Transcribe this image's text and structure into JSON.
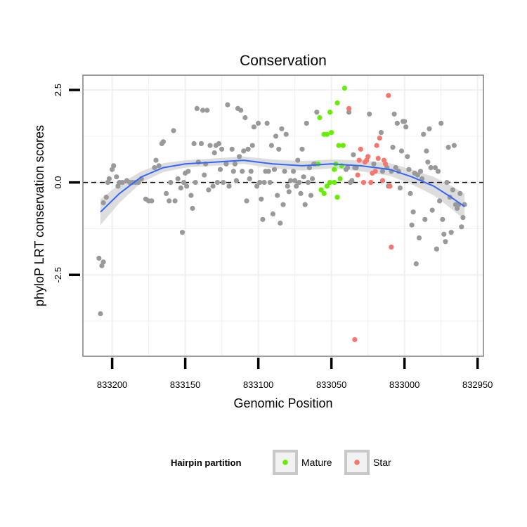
{
  "chart_data": {
    "type": "scatter",
    "title": "Conservation",
    "xlabel": "Genomic Position",
    "ylabel": "phyloP LRT conservation scores",
    "x_reversed": true,
    "xlim": [
      833220,
      832946
    ],
    "ylim": [
      -4.7,
      2.9
    ],
    "x_ticks": [
      833200,
      833150,
      833100,
      833050,
      833000,
      832950
    ],
    "y_ticks": [
      -2.5,
      0.0,
      2.5
    ],
    "y_tick_labels": [
      "-2.5",
      "0.0",
      "2.5"
    ],
    "reference_line": {
      "y": 0,
      "style": "dashed",
      "color": "#000000"
    },
    "grid": true,
    "legend": {
      "title": "Hairpin partition",
      "position": "bottom",
      "entries": [
        {
          "label": "Mature",
          "color": "#66ee00"
        },
        {
          "label": "Star",
          "color": "#f8766d"
        }
      ]
    },
    "colors": {
      "other": "#999999",
      "mature": "#66ee00",
      "star": "#f8766d",
      "smooth": "#3366ff",
      "band": "#d9d9d9",
      "panel_border": "#7f7f7f"
    },
    "smooth": {
      "method": "loess",
      "x": [
        833208,
        833195,
        833180,
        833165,
        833150,
        833130,
        833110,
        833090,
        833070,
        833050,
        833030,
        833010,
        832995,
        832980,
        832970,
        832959
      ],
      "y": [
        -0.8,
        -0.3,
        0.15,
        0.4,
        0.5,
        0.55,
        0.6,
        0.5,
        0.45,
        0.5,
        0.45,
        0.35,
        0.15,
        -0.1,
        -0.35,
        -0.65
      ],
      "se_upper": [
        -0.45,
        -0.05,
        0.3,
        0.52,
        0.6,
        0.65,
        0.7,
        0.62,
        0.58,
        0.62,
        0.6,
        0.52,
        0.35,
        0.15,
        -0.05,
        -0.3
      ],
      "se_lower": [
        -1.15,
        -0.55,
        0.0,
        0.28,
        0.4,
        0.45,
        0.5,
        0.38,
        0.32,
        0.38,
        0.3,
        0.18,
        -0.05,
        -0.35,
        -0.65,
        -1.0
      ]
    },
    "series": [
      {
        "name": "Mature",
        "points": [
          [
            833058,
            1.75
          ],
          [
            833055,
            1.3
          ],
          [
            833053,
            1.3
          ],
          [
            833050,
            1.35
          ],
          [
            833051,
            1.9
          ],
          [
            833047,
            0.5
          ],
          [
            833045,
            1.0
          ],
          [
            833046,
            2.15
          ],
          [
            833059,
            0.5
          ],
          [
            833057,
            -0.2
          ],
          [
            833055,
            -0.3
          ],
          [
            833053,
            -0.1
          ],
          [
            833051,
            0.0
          ],
          [
            833048,
            0.0
          ],
          [
            833048,
            0.35
          ],
          [
            833046,
            -0.4
          ],
          [
            833044,
            0.1
          ],
          [
            833043,
            0.45
          ],
          [
            833042,
            1.0
          ],
          [
            833041,
            2.55
          ]
        ]
      },
      {
        "name": "Star",
        "points": [
          [
            833038,
            2.0
          ],
          [
            833032,
            0.2
          ],
          [
            833028,
            0.0
          ],
          [
            833031,
            0.6
          ],
          [
            833030,
            0.9
          ],
          [
            833026,
            0.6
          ],
          [
            833025,
            0.7
          ],
          [
            833027,
            0.55
          ],
          [
            833022,
            0.25
          ],
          [
            833020,
            0.3
          ],
          [
            833023,
            -0.0
          ],
          [
            833018,
            0.65
          ],
          [
            833017,
            1.2
          ],
          [
            833019,
            1.0
          ],
          [
            833014,
            0.6
          ],
          [
            833015,
            0.05
          ],
          [
            833013,
            0.5
          ],
          [
            833010,
            -0.1
          ],
          [
            833011,
            2.35
          ],
          [
            833009,
            -1.75
          ],
          [
            833034,
            -4.25
          ]
        ]
      },
      {
        "name": "",
        "points": [
          [
            833209,
            -2.05
          ],
          [
            833208,
            -3.55
          ],
          [
            833207,
            -2.25
          ],
          [
            833206,
            -2.15
          ],
          [
            833206,
            -0.55
          ],
          [
            833204,
            -0.4
          ],
          [
            833203,
            0.0
          ],
          [
            833202,
            0.1
          ],
          [
            833200,
            0.35
          ],
          [
            833199,
            0.45
          ],
          [
            833197,
            0.15
          ],
          [
            833196,
            -0.1
          ],
          [
            833195,
            0.0
          ],
          [
            833193,
            0.0
          ],
          [
            833190,
            0.05
          ],
          [
            833188,
            0.0
          ],
          [
            833186,
            -0.0
          ],
          [
            833184,
            0.0
          ],
          [
            833182,
            0.0
          ],
          [
            833180,
            0.1
          ],
          [
            833177,
            -0.45
          ],
          [
            833175,
            -0.5
          ],
          [
            833173,
            -0.5
          ],
          [
            833171,
            0.4
          ],
          [
            833170,
            0.6
          ],
          [
            833168,
            0.45
          ],
          [
            833166,
            1.05
          ],
          [
            833165,
            1.1
          ],
          [
            833163,
            -0.3
          ],
          [
            833161,
            -0.5
          ],
          [
            833160,
            -0.0
          ],
          [
            833158,
            1.4
          ],
          [
            833157,
            -0.5
          ],
          [
            833155,
            0.1
          ],
          [
            833153,
            -0.15
          ],
          [
            833152,
            -1.35
          ],
          [
            833151,
            -0.0
          ],
          [
            833150,
            0.25
          ],
          [
            833149,
            -0.1
          ],
          [
            833148,
            0.3
          ],
          [
            833146,
            -0.35
          ],
          [
            833145,
            -0.7
          ],
          [
            833144,
            1.05
          ],
          [
            833143,
            0.0
          ],
          [
            833142,
            2.0
          ],
          [
            833141,
            0.55
          ],
          [
            833139,
            1.05
          ],
          [
            833138,
            1.95
          ],
          [
            833137,
            0.2
          ],
          [
            833136,
            0.5
          ],
          [
            833135,
            1.95
          ],
          [
            833134,
            -0.2
          ],
          [
            833133,
            1.0
          ],
          [
            833131,
            -0.1
          ],
          [
            833130,
            0.8
          ],
          [
            833129,
            1.0
          ],
          [
            833128,
            0.0
          ],
          [
            833127,
            1.05
          ],
          [
            833126,
            0.35
          ],
          [
            833125,
            0.9
          ],
          [
            833124,
            0.0
          ],
          [
            833122,
            0.5
          ],
          [
            833121,
            2.1
          ],
          [
            833120,
            -0.1
          ],
          [
            833118,
            0.9
          ],
          [
            833117,
            0.3
          ],
          [
            833116,
            0.5
          ],
          [
            833115,
            0.05
          ],
          [
            833114,
            2.0
          ],
          [
            833113,
            0.7
          ],
          [
            833112,
            1.95
          ],
          [
            833111,
            0.3
          ],
          [
            833110,
            0.85
          ],
          [
            833109,
            1.75
          ],
          [
            833108,
            -0.5
          ],
          [
            833107,
            0.9
          ],
          [
            833106,
            0.1
          ],
          [
            833105,
            0.3
          ],
          [
            833104,
            1.0
          ],
          [
            833103,
            1.5
          ],
          [
            833101,
            -0.1
          ],
          [
            833100,
            1.6
          ],
          [
            833099,
            -0.0
          ],
          [
            833098,
            -0.45
          ],
          [
            833097,
            -1.0
          ],
          [
            833096,
            0.0
          ],
          [
            833095,
            0.3
          ],
          [
            833094,
            1.6
          ],
          [
            833093,
            0.3
          ],
          [
            833092,
            0.0
          ],
          [
            833091,
            1.0
          ],
          [
            833090,
            -0.85
          ],
          [
            833089,
            0.35
          ],
          [
            833088,
            1.25
          ],
          [
            833087,
            -0.35
          ],
          [
            833086,
            0.9
          ],
          [
            833085,
            -1.1
          ],
          [
            833084,
            1.45
          ],
          [
            833083,
            -0.6
          ],
          [
            833082,
            0.3
          ],
          [
            833081,
            1.3
          ],
          [
            833080,
            -0.1
          ],
          [
            833079,
            -0.25
          ],
          [
            833078,
            0.05
          ],
          [
            833076,
            0.3
          ],
          [
            833075,
            0.05
          ],
          [
            833074,
            -0.1
          ],
          [
            833073,
            0.6
          ],
          [
            833072,
            0.0
          ],
          [
            833071,
            -0.3
          ],
          [
            833070,
            0.9
          ],
          [
            833069,
            0.15
          ],
          [
            833068,
            -0.6
          ],
          [
            833067,
            1.6
          ],
          [
            833066,
            0.0
          ],
          [
            833065,
            0.4
          ],
          [
            833064,
            -0.35
          ],
          [
            833063,
            0.1
          ],
          [
            833062,
            0.5
          ],
          [
            833061,
            0.5
          ],
          [
            833060,
            1.9
          ],
          [
            833040,
            0.35
          ],
          [
            833039,
            0.4
          ],
          [
            833038,
            1.9
          ],
          [
            833037,
            0.0
          ],
          [
            833036,
            0.05
          ],
          [
            833035,
            0.75
          ],
          [
            833034,
            0.4
          ],
          [
            833033,
            0.4
          ],
          [
            833024,
            1.85
          ],
          [
            833021,
            0.5
          ],
          [
            833016,
            1.35
          ],
          [
            833015,
            0.3
          ],
          [
            833012,
            0.4
          ],
          [
            833011,
            -0.1
          ],
          [
            833009,
            0.3
          ],
          [
            833008,
            0.95
          ],
          [
            833007,
            1.85
          ],
          [
            833006,
            0.4
          ],
          [
            833005,
            1.6
          ],
          [
            833004,
            0.3
          ],
          [
            833003,
            -0.15
          ],
          [
            833002,
            0.85
          ],
          [
            833001,
            1.65
          ],
          [
            833000,
            1.65
          ],
          [
            832999,
            1.5
          ],
          [
            832998,
            0.7
          ],
          [
            832997,
            0.35
          ],
          [
            832996,
            -0.3
          ],
          [
            832995,
            -1.15
          ],
          [
            832994,
            -0.8
          ],
          [
            832993,
            0.25
          ],
          [
            832992,
            -2.2
          ],
          [
            832991,
            0.2
          ],
          [
            832990,
            -1.5
          ],
          [
            832989,
            0.3
          ],
          [
            832988,
            0.1
          ],
          [
            832987,
            1.3
          ],
          [
            832986,
            -1.0
          ],
          [
            832985,
            0.85
          ],
          [
            832984,
            0.55
          ],
          [
            832983,
            1.45
          ],
          [
            832982,
            0.4
          ],
          [
            832981,
            -0.75
          ],
          [
            832979,
            0.4
          ],
          [
            832978,
            -1.8
          ],
          [
            832977,
            0.3
          ],
          [
            832976,
            -0.5
          ],
          [
            832975,
            1.6
          ],
          [
            832974,
            -1.0
          ],
          [
            832973,
            -1.4
          ],
          [
            832972,
            -1.6
          ],
          [
            832971,
            0.0
          ],
          [
            832970,
            0.95
          ],
          [
            832969,
            -0.4
          ],
          [
            832968,
            -1.35
          ],
          [
            832967,
            -0.2
          ],
          [
            832966,
            1.0
          ],
          [
            832965,
            -0.6
          ],
          [
            832964,
            -0.7
          ],
          [
            832963,
            -0.6
          ],
          [
            832962,
            -0.3
          ],
          [
            832961,
            -1.2
          ],
          [
            832960,
            -0.95
          ],
          [
            832959,
            -0.6
          ]
        ]
      }
    ]
  }
}
